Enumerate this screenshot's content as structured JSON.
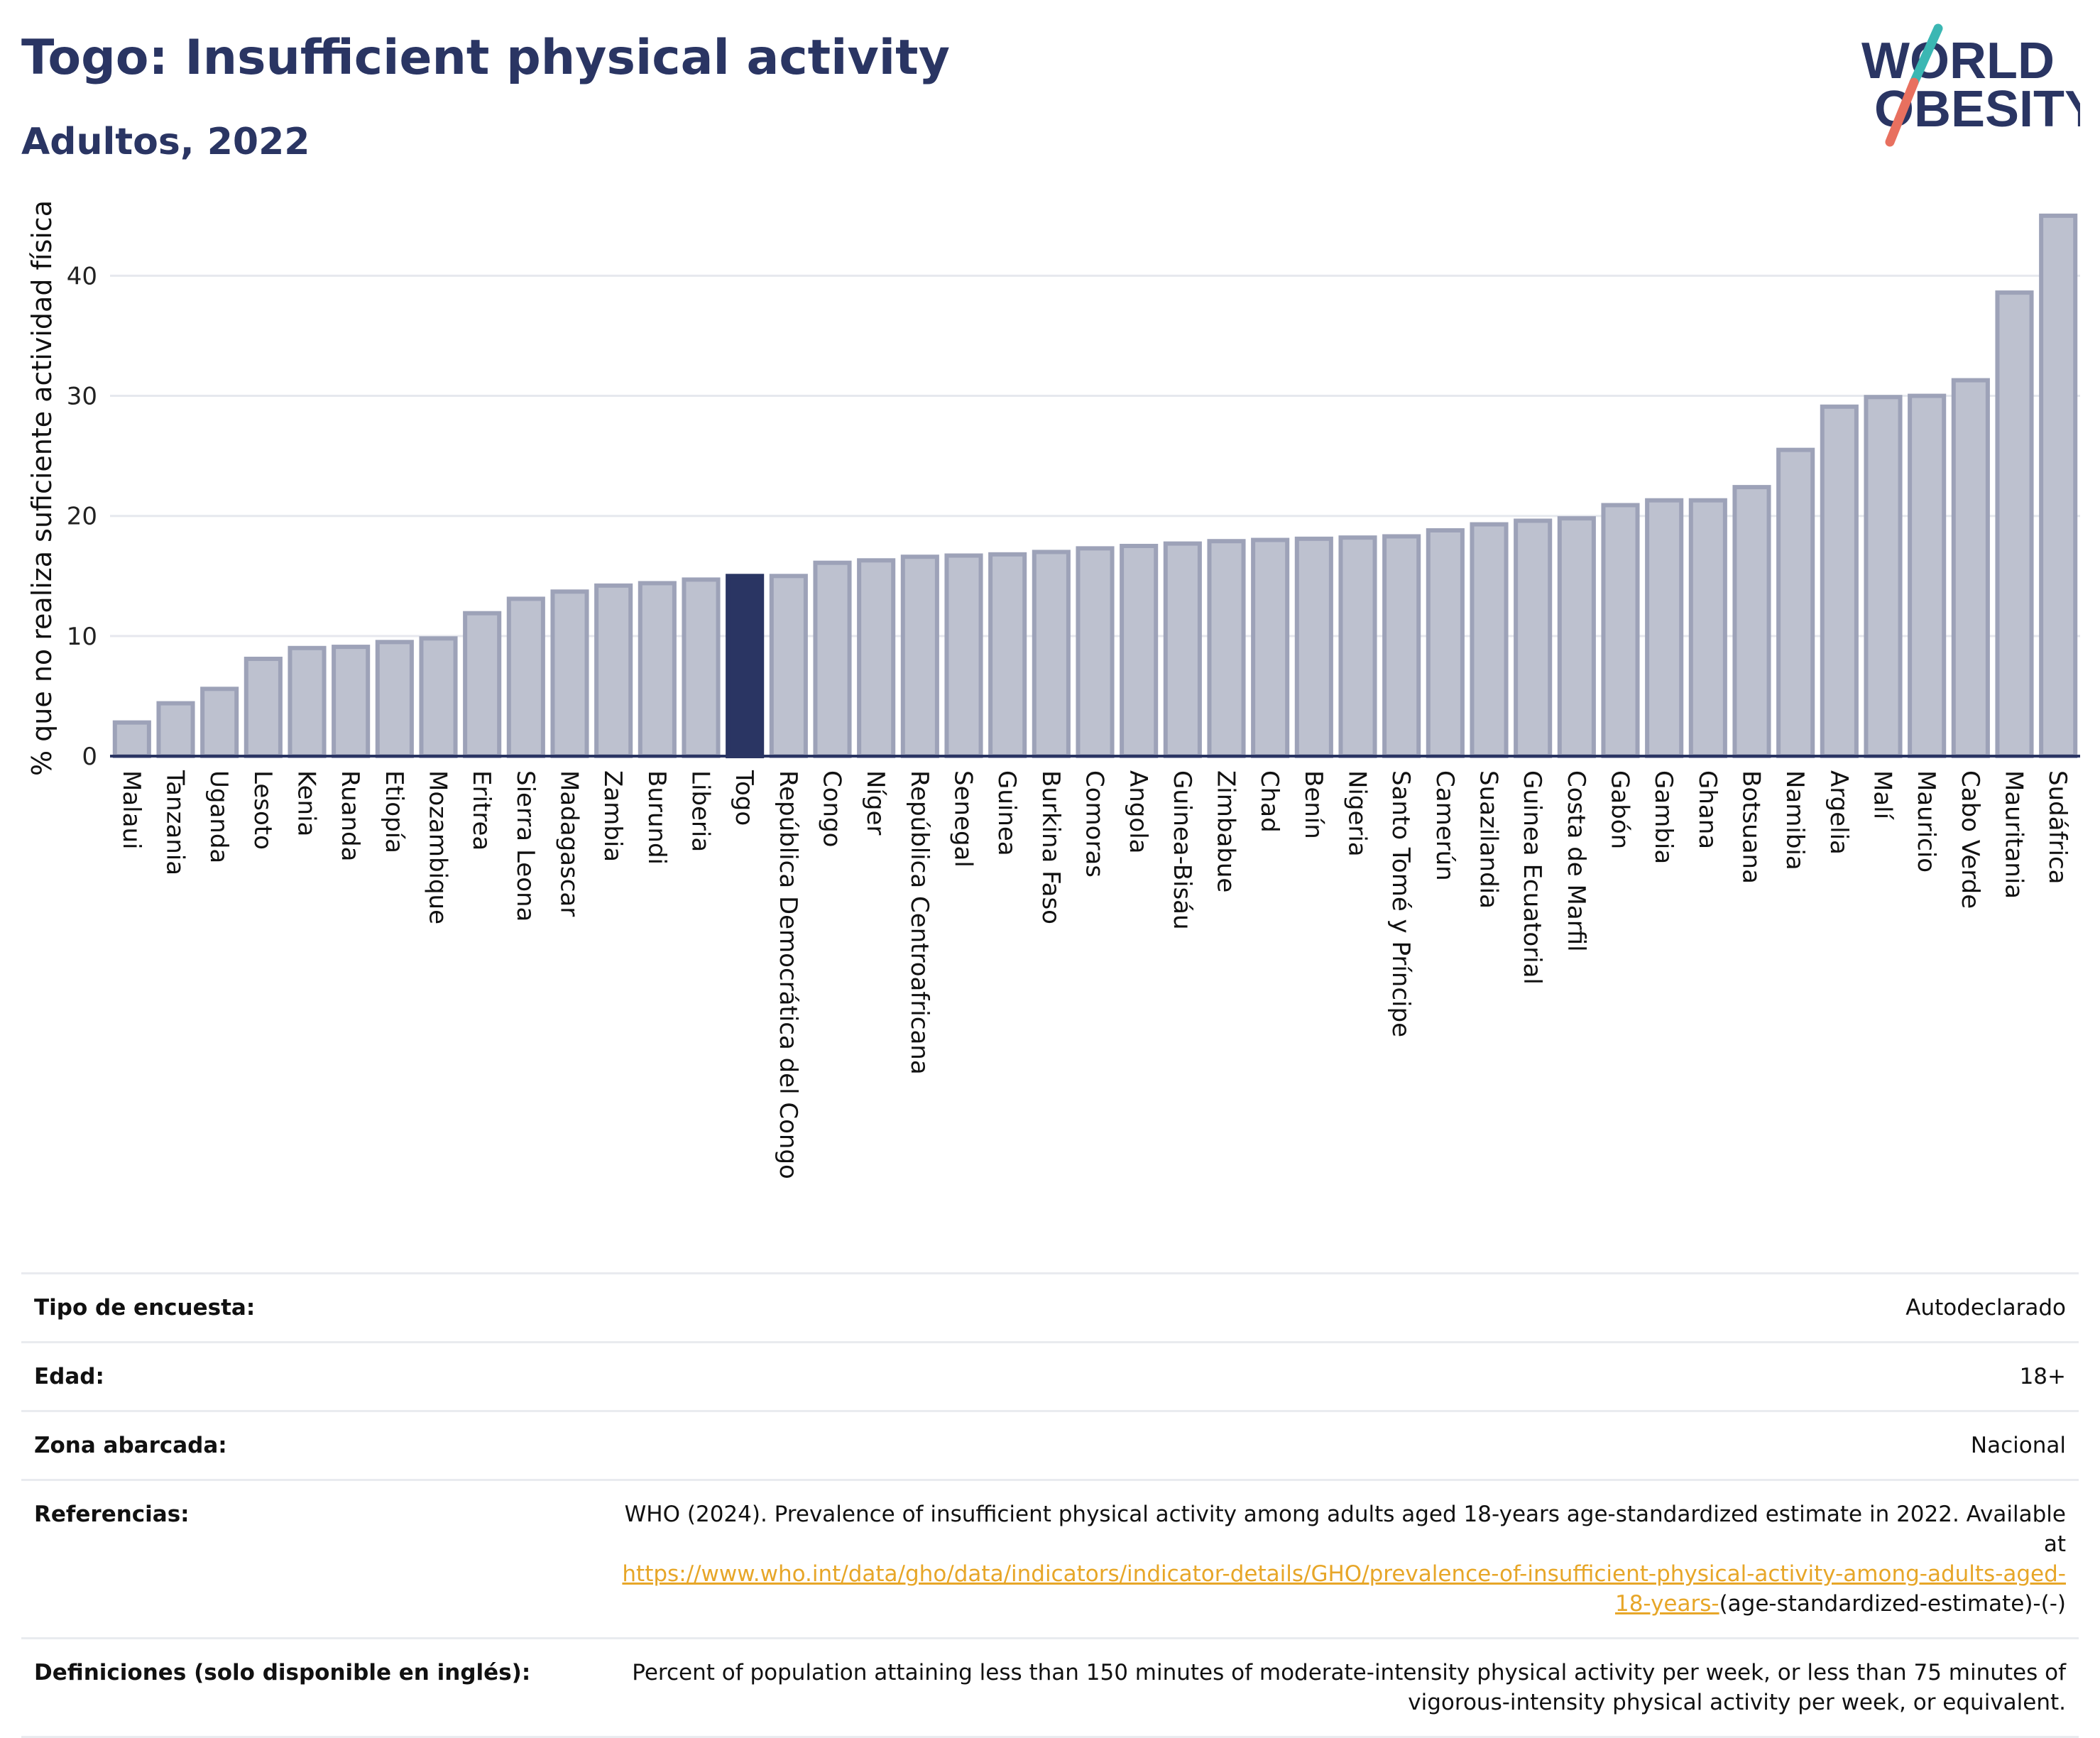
{
  "header": {
    "title": "Togo: Insufficient physical activity",
    "subtitle": "Adultos, 2022"
  },
  "logo": {
    "line1": "WORLD",
    "line2": "OBESITY"
  },
  "chart_data": {
    "type": "bar",
    "title": "Togo: Insufficient physical activity",
    "subtitle": "Adultos, 2022",
    "xlabel": "",
    "ylabel": "% que no realiza suficiente actividad física",
    "ylim": [
      0,
      47
    ],
    "yticks": [
      0,
      10,
      20,
      30,
      40
    ],
    "grid": true,
    "highlight": "Togo",
    "colors": {
      "bar": "#bdc1cf",
      "bar_edge": "#9da2b8",
      "highlight": "#2a3563",
      "grid": "#e6e8ee",
      "axis": "#2a3563"
    },
    "categories": [
      "Malaui",
      "Tanzania",
      "Uganda",
      "Lesoto",
      "Kenia",
      "Ruanda",
      "Etiopía",
      "Mozambique",
      "Eritrea",
      "Sierra Leona",
      "Madagascar",
      "Zambia",
      "Burundi",
      "Liberia",
      "Togo",
      "República Democrática del Congo",
      "Congo",
      "Níger",
      "República Centroafricana",
      "Senegal",
      "Guinea",
      "Burkina Faso",
      "Comoras",
      "Angola",
      "Guinea-Bisáu",
      "Zimbabue",
      "Chad",
      "Benín",
      "Nigeria",
      "Santo Tomé y Príncipe",
      "Camerún",
      "Suazilandia",
      "Guinea Ecuatorial",
      "Costa de Marfil",
      "Gabón",
      "Gambia",
      "Ghana",
      "Botsuana",
      "Namibia",
      "Argelia",
      "Malí",
      "Mauricio",
      "Cabo Verde",
      "Mauritania",
      "Sudáfrica"
    ],
    "values": [
      2.8,
      4.4,
      5.6,
      8.1,
      9.0,
      9.1,
      9.5,
      9.8,
      11.9,
      13.1,
      13.7,
      14.2,
      14.4,
      14.7,
      15.0,
      15.0,
      16.1,
      16.3,
      16.6,
      16.7,
      16.8,
      17.0,
      17.3,
      17.5,
      17.7,
      17.9,
      18.0,
      18.1,
      18.2,
      18.3,
      18.8,
      19.3,
      19.6,
      19.8,
      20.9,
      21.3,
      21.3,
      22.4,
      25.5,
      29.1,
      29.9,
      30.0,
      31.3,
      38.6,
      45.0
    ]
  },
  "footer": {
    "survey_label": "Tipo de encuesta:",
    "survey_value": "Autodeclarado",
    "age_label": "Edad:",
    "age_value": "18+",
    "area_label": "Zona abarcada:",
    "area_value": "Nacional",
    "refs_label": "Referencias:",
    "refs_text": "WHO (2024). Prevalence of insufficient physical activity among adults aged 18-years age-standardized estimate in 2022. Available at",
    "refs_link_1": "https://www.who.int/data/gho/data/indicators/indicator-details/GHO/prevalence-of-insufficient-physical-activity-among-adults-aged-",
    "refs_link_2": "18-years-",
    "refs_tail": "(age-standardized-estimate)-(-)",
    "defs_label": "Definiciones (solo disponible en inglés):",
    "defs_text_1": "Percent of population attaining less than 150 minutes of moderate-intensity physical activity per week, or less than 75 minutes of",
    "defs_text_2": "vigorous-intensity physical activity per week, or equivalent."
  }
}
